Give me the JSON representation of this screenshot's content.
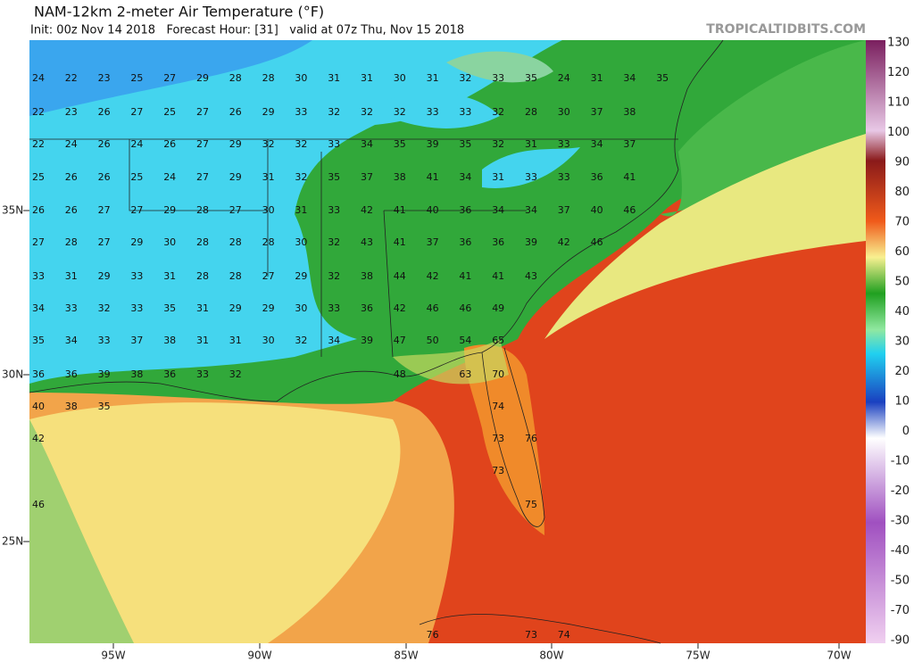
{
  "header": {
    "title": "NAM-12km 2-meter Air Temperature (°F)",
    "subtitle": "Init: 00z Nov 14 2018   Forecast Hour: [31]   valid at 07z Thu, Nov 15 2018",
    "brand": "TROPICALTIDBITS.COM"
  },
  "latitude_labels": [
    "35N",
    "30N",
    "25N"
  ],
  "longitude_labels": [
    "95W",
    "90W",
    "85W",
    "80W",
    "75W",
    "70W"
  ],
  "colorbar_labels": [
    "130",
    "120",
    "110",
    "100",
    "90",
    "80",
    "70",
    "60",
    "50",
    "40",
    "30",
    "20",
    "10",
    "0",
    "-10",
    "-20",
    "-30",
    "-40",
    "-50",
    "-70",
    "-90"
  ],
  "station_temperatures": [
    [
      "24",
      "22",
      "23",
      "25",
      "27",
      "29",
      "28",
      "28",
      "30",
      "31",
      "31",
      "30",
      "31",
      "32",
      "33",
      "35",
      "24",
      "31",
      "34",
      "35"
    ],
    [
      "22",
      "23",
      "26",
      "27",
      "25",
      "27",
      "26",
      "29",
      "33",
      "32",
      "32",
      "32",
      "33",
      "33",
      "32",
      "28",
      "30",
      "37",
      "38"
    ],
    [
      "22",
      "24",
      "26",
      "24",
      "26",
      "27",
      "29",
      "32",
      "32",
      "33",
      "34",
      "35",
      "39",
      "35",
      "32",
      "31",
      "33",
      "34",
      "37"
    ],
    [
      "25",
      "26",
      "26",
      "25",
      "24",
      "27",
      "29",
      "31",
      "32",
      "35",
      "37",
      "38",
      "41",
      "34",
      "31",
      "33",
      "33",
      "36",
      "41"
    ],
    [
      "26",
      "26",
      "27",
      "27",
      "29",
      "28",
      "27",
      "30",
      "31",
      "33",
      "42",
      "41",
      "40",
      "36",
      "34",
      "34",
      "37",
      "40",
      "46"
    ],
    [
      "27",
      "28",
      "27",
      "29",
      "30",
      "28",
      "28",
      "28",
      "30",
      "32",
      "43",
      "41",
      "37",
      "36",
      "36",
      "39",
      "42",
      "46"
    ],
    [
      "33",
      "31",
      "29",
      "33",
      "31",
      "28",
      "28",
      "27",
      "29",
      "32",
      "38",
      "44",
      "42",
      "41",
      "41",
      "43"
    ],
    [
      "34",
      "33",
      "32",
      "33",
      "35",
      "31",
      "29",
      "29",
      "30",
      "33",
      "36",
      "42",
      "46",
      "46",
      "49"
    ],
    [
      "35",
      "34",
      "33",
      "37",
      "38",
      "31",
      "31",
      "30",
      "32",
      "34",
      "39",
      "47",
      "50",
      "54",
      "65"
    ],
    [
      "36",
      "36",
      "39",
      "38",
      "36",
      "33",
      "32",
      "48",
      "63",
      "70"
    ],
    [
      "40",
      "38",
      "35",
      "74"
    ],
    [
      "42",
      "73",
      "76"
    ],
    [
      "73"
    ],
    [
      "46",
      "75"
    ],
    [
      "76",
      "73",
      "74"
    ]
  ]
}
